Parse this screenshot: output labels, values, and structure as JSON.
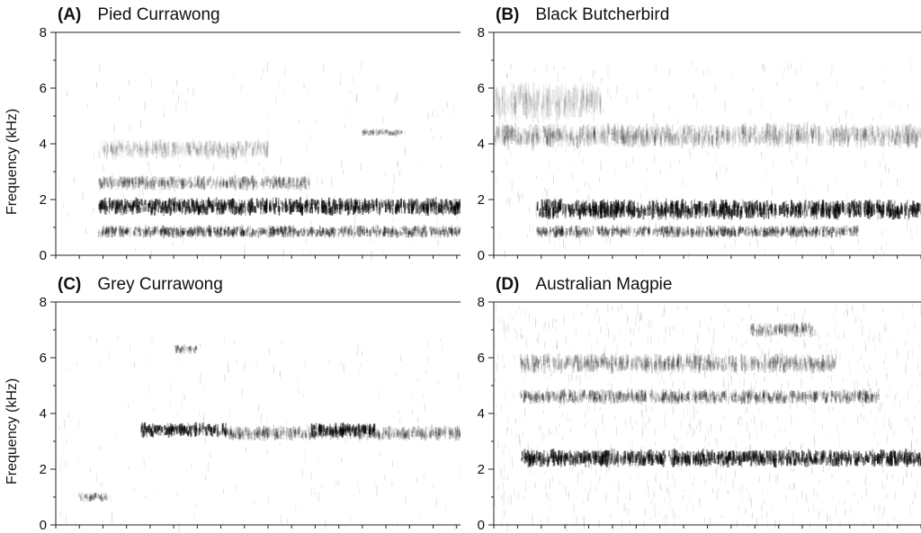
{
  "chart_data": [
    {
      "type": "heatmap",
      "panel_letter": "(A)",
      "title": "Pied Currawong",
      "ylabel": "Frequency (kHz)",
      "xlabel": "",
      "ylim": [
        0,
        8
      ],
      "yticks": [
        0,
        2,
        4,
        6,
        8
      ],
      "colormap": "grayscale (dark = high energy)",
      "bands": [
        {
          "f": 1.75,
          "t": [
            0.1,
            1.0
          ],
          "level": 0.85,
          "width": 0.35
        },
        {
          "f": 0.85,
          "t": [
            0.1,
            1.0
          ],
          "level": 0.45,
          "width": 0.25
        },
        {
          "f": 2.6,
          "t": [
            0.1,
            0.6
          ],
          "level": 0.3,
          "width": 0.3
        },
        {
          "f": 3.8,
          "t": [
            0.1,
            0.5
          ],
          "level": 0.15,
          "width": 0.4
        },
        {
          "f": 4.4,
          "t": [
            0.72,
            0.82
          ],
          "level": 0.3,
          "width": 0.15
        }
      ]
    },
    {
      "type": "heatmap",
      "panel_letter": "(B)",
      "title": "Black Butcherbird",
      "ylabel": "",
      "xlabel": "",
      "ylim": [
        0,
        8
      ],
      "yticks": [
        0,
        2,
        4,
        6,
        8
      ],
      "colormap": "grayscale (dark = high energy)",
      "bands": [
        {
          "f": 1.65,
          "t": [
            0.1,
            1.0
          ],
          "level": 0.85,
          "width": 0.4
        },
        {
          "f": 0.85,
          "t": [
            0.1,
            0.85
          ],
          "level": 0.45,
          "width": 0.25
        },
        {
          "f": 4.3,
          "t": [
            0.0,
            1.0
          ],
          "level": 0.2,
          "width": 0.5
        },
        {
          "f": 5.5,
          "t": [
            0.0,
            0.25
          ],
          "level": 0.12,
          "width": 0.8
        }
      ]
    },
    {
      "type": "heatmap",
      "panel_letter": "(C)",
      "title": "Grey Currawong",
      "ylabel": "Frequency (kHz)",
      "xlabel": "",
      "ylim": [
        0,
        8
      ],
      "yticks": [
        0,
        2,
        4,
        6,
        8
      ],
      "colormap": "grayscale (dark = high energy)",
      "bands": [
        {
          "f": 3.4,
          "t": [
            0.2,
            0.4
          ],
          "level": 0.8,
          "width": 0.3
        },
        {
          "f": 3.4,
          "t": [
            0.6,
            0.75
          ],
          "level": 0.8,
          "width": 0.3
        },
        {
          "f": 3.3,
          "t": [
            0.4,
            1.0
          ],
          "level": 0.3,
          "width": 0.3
        },
        {
          "f": 6.3,
          "t": [
            0.28,
            0.33
          ],
          "level": 0.35,
          "width": 0.2
        },
        {
          "f": 1.0,
          "t": [
            0.05,
            0.12
          ],
          "level": 0.3,
          "width": 0.2
        }
      ]
    },
    {
      "type": "heatmap",
      "panel_letter": "(D)",
      "title": "Australian Magpie",
      "ylabel": "",
      "xlabel": "",
      "ylim": [
        0,
        8
      ],
      "yticks": [
        0,
        2,
        4,
        6,
        8
      ],
      "colormap": "grayscale (dark = high energy)",
      "bands": [
        {
          "f": 2.4,
          "t": [
            0.06,
            1.0
          ],
          "level": 0.8,
          "width": 0.35
        },
        {
          "f": 4.6,
          "t": [
            0.06,
            0.9
          ],
          "level": 0.35,
          "width": 0.3
        },
        {
          "f": 5.8,
          "t": [
            0.06,
            0.8
          ],
          "level": 0.25,
          "width": 0.4
        },
        {
          "f": 7.0,
          "t": [
            0.6,
            0.75
          ],
          "level": 0.3,
          "width": 0.3
        }
      ]
    }
  ]
}
